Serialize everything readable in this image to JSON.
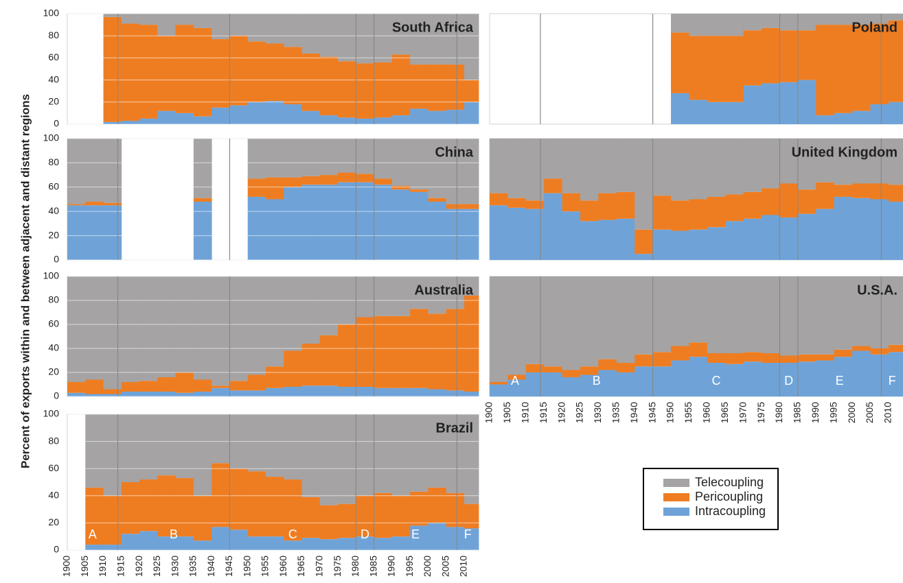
{
  "chart_data": [
    {
      "type": "bar",
      "title": "South Africa",
      "ylabel": "Percent of exports within and between adjacent and distant regions",
      "x": [
        1900,
        1905,
        1910,
        1915,
        1920,
        1925,
        1930,
        1935,
        1940,
        1945,
        1950,
        1955,
        1960,
        1965,
        1970,
        1975,
        1980,
        1985,
        1990,
        1995,
        2000,
        2005,
        2010
      ],
      "series": [
        {
          "name": "Intracoupling",
          "color": "#6fa3d8",
          "values": [
            null,
            null,
            2,
            3,
            5,
            12,
            10,
            7,
            15,
            17,
            20,
            21,
            18,
            12,
            8,
            6,
            5,
            6,
            8,
            14,
            12,
            13,
            20
          ]
        },
        {
          "name": "Pericoupling",
          "color": "#ee7d22",
          "values": [
            null,
            null,
            95,
            88,
            85,
            68,
            80,
            80,
            62,
            63,
            55,
            52,
            52,
            52,
            53,
            51,
            50,
            50,
            55,
            40,
            42,
            41,
            20
          ]
        },
        {
          "name": "Telecoupling",
          "color": "#a5a3a3",
          "values": [
            null,
            null,
            3,
            9,
            10,
            20,
            10,
            13,
            23,
            20,
            25,
            27,
            30,
            36,
            39,
            43,
            45,
            44,
            37,
            46,
            46,
            46,
            60
          ]
        }
      ],
      "xlim": [
        1900,
        2014
      ],
      "ylim": [
        0,
        100
      ],
      "yticks": [
        0,
        20,
        40,
        60,
        80,
        100
      ],
      "vlines": [
        1914,
        1945,
        1980,
        1985,
        2008
      ]
    },
    {
      "type": "bar",
      "title": "China",
      "x": [
        1900,
        1905,
        1910,
        1915,
        1920,
        1925,
        1930,
        1935,
        1940,
        1945,
        1950,
        1955,
        1960,
        1965,
        1970,
        1975,
        1980,
        1985,
        1990,
        1995,
        2000,
        2005,
        2010
      ],
      "series": [
        {
          "name": "Intracoupling",
          "color": "#6fa3d8",
          "values": [
            45,
            45,
            45,
            null,
            null,
            null,
            null,
            48,
            null,
            null,
            52,
            50,
            60,
            62,
            62,
            64,
            64,
            62,
            58,
            56,
            48,
            42,
            42
          ]
        },
        {
          "name": "Pericoupling",
          "color": "#ee7d22",
          "values": [
            1,
            3,
            2,
            null,
            null,
            null,
            null,
            3,
            null,
            null,
            15,
            18,
            8,
            7,
            8,
            8,
            7,
            5,
            3,
            2,
            3,
            4,
            4
          ]
        },
        {
          "name": "Telecoupling",
          "color": "#a5a3a3",
          "values": [
            54,
            52,
            53,
            null,
            null,
            null,
            null,
            49,
            null,
            null,
            33,
            32,
            32,
            31,
            30,
            28,
            29,
            33,
            39,
            42,
            49,
            54,
            54
          ]
        }
      ],
      "xlim": [
        1900,
        2014
      ],
      "ylim": [
        0,
        100
      ],
      "yticks": [
        0,
        20,
        40,
        60,
        80,
        100
      ],
      "vlines": [
        1914,
        1945,
        1980,
        1985,
        2008
      ]
    },
    {
      "type": "bar",
      "title": "Australia",
      "x": [
        1900,
        1905,
        1910,
        1915,
        1920,
        1925,
        1930,
        1935,
        1940,
        1945,
        1950,
        1955,
        1960,
        1965,
        1970,
        1975,
        1980,
        1985,
        1990,
        1995,
        2000,
        2005,
        2010
      ],
      "series": [
        {
          "name": "Intracoupling",
          "color": "#6fa3d8",
          "values": [
            3,
            2,
            2,
            4,
            4,
            4,
            3,
            4,
            7,
            5,
            5,
            7,
            8,
            9,
            9,
            8,
            8,
            7,
            7,
            7,
            6,
            5,
            4
          ]
        },
        {
          "name": "Pericoupling",
          "color": "#ee7d22",
          "values": [
            9,
            12,
            4,
            8,
            9,
            12,
            17,
            10,
            2,
            8,
            13,
            18,
            30,
            35,
            42,
            52,
            58,
            60,
            60,
            66,
            63,
            68,
            80
          ]
        },
        {
          "name": "Telecoupling",
          "color": "#a5a3a3",
          "values": [
            88,
            86,
            94,
            88,
            87,
            84,
            80,
            86,
            91,
            87,
            82,
            75,
            62,
            56,
            49,
            40,
            34,
            33,
            33,
            27,
            31,
            27,
            16
          ]
        }
      ],
      "xlim": [
        1900,
        2014
      ],
      "ylim": [
        0,
        100
      ],
      "yticks": [
        0,
        20,
        40,
        60,
        80,
        100
      ],
      "vlines": [
        1914,
        1945,
        1980,
        1985,
        2008
      ]
    },
    {
      "type": "bar",
      "title": "Brazil",
      "x": [
        1900,
        1905,
        1910,
        1915,
        1920,
        1925,
        1930,
        1935,
        1940,
        1945,
        1950,
        1955,
        1960,
        1965,
        1970,
        1975,
        1980,
        1985,
        1990,
        1995,
        2000,
        2005,
        2010
      ],
      "series": [
        {
          "name": "Intracoupling",
          "color": "#6fa3d8",
          "values": [
            null,
            4,
            4,
            12,
            14,
            10,
            10,
            7,
            17,
            15,
            10,
            10,
            7,
            9,
            8,
            9,
            10,
            9,
            10,
            18,
            20,
            17,
            16
          ]
        },
        {
          "name": "Pericoupling",
          "color": "#ee7d22",
          "values": [
            null,
            42,
            36,
            38,
            38,
            45,
            43,
            33,
            47,
            45,
            48,
            44,
            45,
            30,
            25,
            25,
            30,
            33,
            30,
            25,
            26,
            25,
            18
          ]
        },
        {
          "name": "Telecoupling",
          "color": "#a5a3a3",
          "values": [
            null,
            54,
            60,
            50,
            48,
            45,
            47,
            60,
            36,
            40,
            42,
            46,
            48,
            61,
            67,
            66,
            60,
            58,
            60,
            57,
            54,
            58,
            66
          ]
        }
      ],
      "xlim": [
        1900,
        2014
      ],
      "ylim": [
        0,
        100
      ],
      "yticks": [
        0,
        20,
        40,
        60,
        80,
        100
      ],
      "xticks": [
        1900,
        1905,
        1910,
        1915,
        1920,
        1925,
        1930,
        1935,
        1940,
        1945,
        1950,
        1955,
        1960,
        1965,
        1970,
        1975,
        1980,
        1985,
        1990,
        1995,
        2000,
        2005,
        2010
      ],
      "vlines": [
        1914,
        1945,
        1980,
        1985,
        2008
      ],
      "annotations": [
        "A",
        "B",
        "C",
        "D",
        "E",
        "F"
      ]
    },
    {
      "type": "bar",
      "title": "Poland",
      "x": [
        1900,
        1905,
        1910,
        1915,
        1920,
        1925,
        1930,
        1935,
        1940,
        1945,
        1950,
        1955,
        1960,
        1965,
        1970,
        1975,
        1980,
        1985,
        1990,
        1995,
        2000,
        2005,
        2010
      ],
      "series": [
        {
          "name": "Intracoupling",
          "color": "#6fa3d8",
          "values": [
            null,
            null,
            null,
            null,
            null,
            null,
            null,
            null,
            null,
            null,
            28,
            22,
            20,
            20,
            35,
            37,
            38,
            40,
            8,
            10,
            12,
            18,
            20
          ]
        },
        {
          "name": "Pericoupling",
          "color": "#ee7d22",
          "values": [
            null,
            null,
            null,
            null,
            null,
            null,
            null,
            null,
            null,
            null,
            55,
            58,
            60,
            60,
            50,
            50,
            47,
            45,
            82,
            80,
            78,
            73,
            74
          ]
        },
        {
          "name": "Telecoupling",
          "color": "#a5a3a3",
          "values": [
            null,
            null,
            null,
            null,
            null,
            null,
            null,
            null,
            null,
            null,
            17,
            20,
            20,
            20,
            15,
            13,
            15,
            15,
            10,
            10,
            10,
            9,
            6
          ]
        }
      ],
      "xlim": [
        1900,
        2014
      ],
      "ylim": [
        0,
        100
      ],
      "vlines": [
        1914,
        1945,
        1980,
        1985,
        2008
      ]
    },
    {
      "type": "bar",
      "title": "United Kingdom",
      "x": [
        1900,
        1905,
        1910,
        1915,
        1920,
        1925,
        1930,
        1935,
        1940,
        1945,
        1950,
        1955,
        1960,
        1965,
        1970,
        1975,
        1980,
        1985,
        1990,
        1995,
        2000,
        2005,
        2010
      ],
      "series": [
        {
          "name": "Intracoupling",
          "color": "#6fa3d8",
          "values": [
            45,
            43,
            42,
            55,
            40,
            32,
            33,
            34,
            5,
            25,
            24,
            25,
            27,
            32,
            34,
            37,
            35,
            38,
            42,
            52,
            51,
            50,
            48
          ]
        },
        {
          "name": "Pericoupling",
          "color": "#ee7d22",
          "values": [
            10,
            8,
            7,
            12,
            15,
            17,
            22,
            22,
            20,
            28,
            25,
            25,
            25,
            22,
            22,
            22,
            28,
            20,
            22,
            10,
            12,
            13,
            14
          ]
        },
        {
          "name": "Telecoupling",
          "color": "#a5a3a3",
          "values": [
            45,
            49,
            51,
            33,
            45,
            51,
            45,
            44,
            75,
            47,
            51,
            50,
            48,
            46,
            44,
            41,
            37,
            42,
            36,
            38,
            37,
            37,
            38
          ]
        }
      ],
      "xlim": [
        1900,
        2014
      ],
      "ylim": [
        0,
        100
      ],
      "vlines": [
        1914,
        1945,
        1980,
        1985,
        2008
      ]
    },
    {
      "type": "bar",
      "title": "U.S.A.",
      "x": [
        1900,
        1905,
        1910,
        1915,
        1920,
        1925,
        1930,
        1935,
        1940,
        1945,
        1950,
        1955,
        1960,
        1965,
        1970,
        1975,
        1980,
        1985,
        1990,
        1995,
        2000,
        2005,
        2010
      ],
      "series": [
        {
          "name": "Intracoupling",
          "color": "#6fa3d8",
          "values": [
            10,
            14,
            20,
            20,
            16,
            18,
            22,
            20,
            25,
            25,
            30,
            33,
            28,
            27,
            29,
            28,
            28,
            29,
            30,
            33,
            38,
            35,
            37
          ]
        },
        {
          "name": "Pericoupling",
          "color": "#ee7d22",
          "values": [
            2,
            4,
            7,
            5,
            6,
            7,
            9,
            8,
            10,
            12,
            12,
            12,
            8,
            9,
            8,
            8,
            6,
            6,
            5,
            6,
            4,
            5,
            6
          ]
        },
        {
          "name": "Telecoupling",
          "color": "#a5a3a3",
          "values": [
            88,
            82,
            73,
            75,
            78,
            75,
            69,
            72,
            65,
            63,
            58,
            55,
            64,
            64,
            63,
            64,
            66,
            65,
            65,
            61,
            58,
            60,
            57
          ]
        }
      ],
      "xlim": [
        1900,
        2014
      ],
      "ylim": [
        0,
        100
      ],
      "xticks": [
        1900,
        1905,
        1910,
        1915,
        1920,
        1925,
        1930,
        1935,
        1940,
        1945,
        1950,
        1955,
        1960,
        1965,
        1970,
        1975,
        1980,
        1985,
        1990,
        1995,
        2000,
        2005,
        2010
      ],
      "vlines": [
        1914,
        1945,
        1980,
        1985,
        2008
      ],
      "annotations": [
        "A",
        "B",
        "C",
        "D",
        "E",
        "F"
      ]
    }
  ]
}
